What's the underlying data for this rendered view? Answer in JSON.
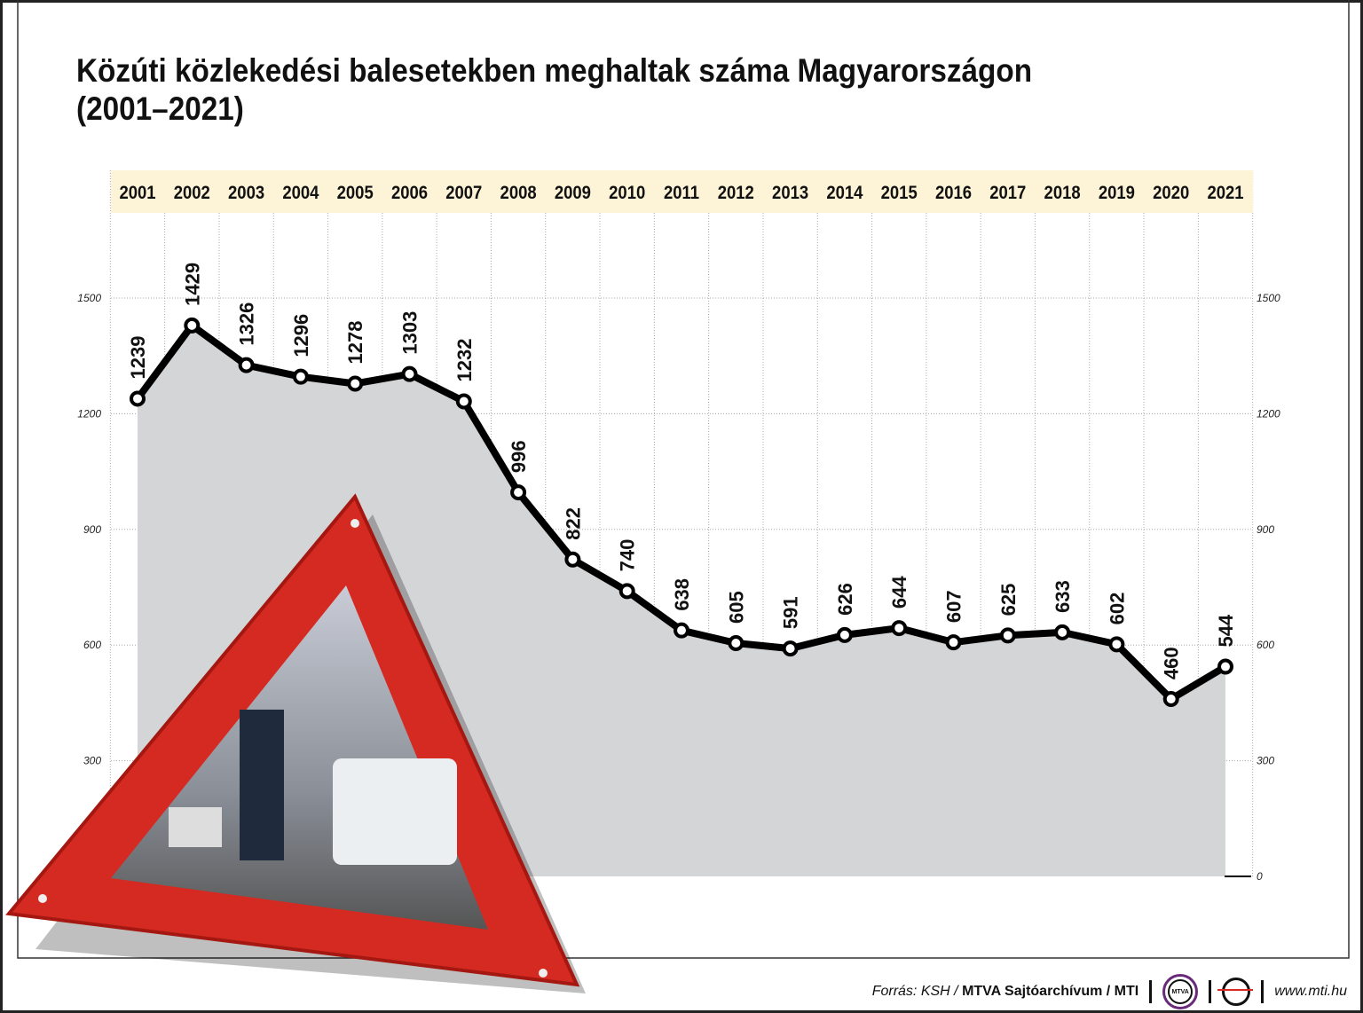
{
  "title_line1": "Közúti közlekedési balesetekben meghaltak száma Magyarországon",
  "title_line2": "(2001–2021)",
  "footer": {
    "source_prefix": "Forrás: KSH / ",
    "source_bold": "MTVA Sajtóarchívum / MTI",
    "logo1": "MTVA",
    "url": "www.mti.hu"
  },
  "colors": {
    "line": "#000000",
    "area": "#d4d5d7",
    "header_band": "#fdf3d6",
    "triangle": "#d42a22"
  },
  "chart_data": {
    "type": "area",
    "title": "Közúti közlekedési balesetekben meghaltak száma Magyarországon (2001–2021)",
    "categories": [
      "2001",
      "2002",
      "2003",
      "2004",
      "2005",
      "2006",
      "2007",
      "2008",
      "2009",
      "2010",
      "2011",
      "2012",
      "2013",
      "2014",
      "2015",
      "2016",
      "2017",
      "2018",
      "2019",
      "2020",
      "2021"
    ],
    "values": [
      1239,
      1429,
      1326,
      1296,
      1278,
      1303,
      1232,
      996,
      822,
      740,
      638,
      605,
      591,
      626,
      644,
      607,
      625,
      633,
      602,
      460,
      544
    ],
    "ylim": [
      0,
      1500
    ],
    "yticks": [
      0,
      300,
      600,
      900,
      1200,
      1500
    ],
    "grid": true,
    "xaxis_position": "top"
  }
}
